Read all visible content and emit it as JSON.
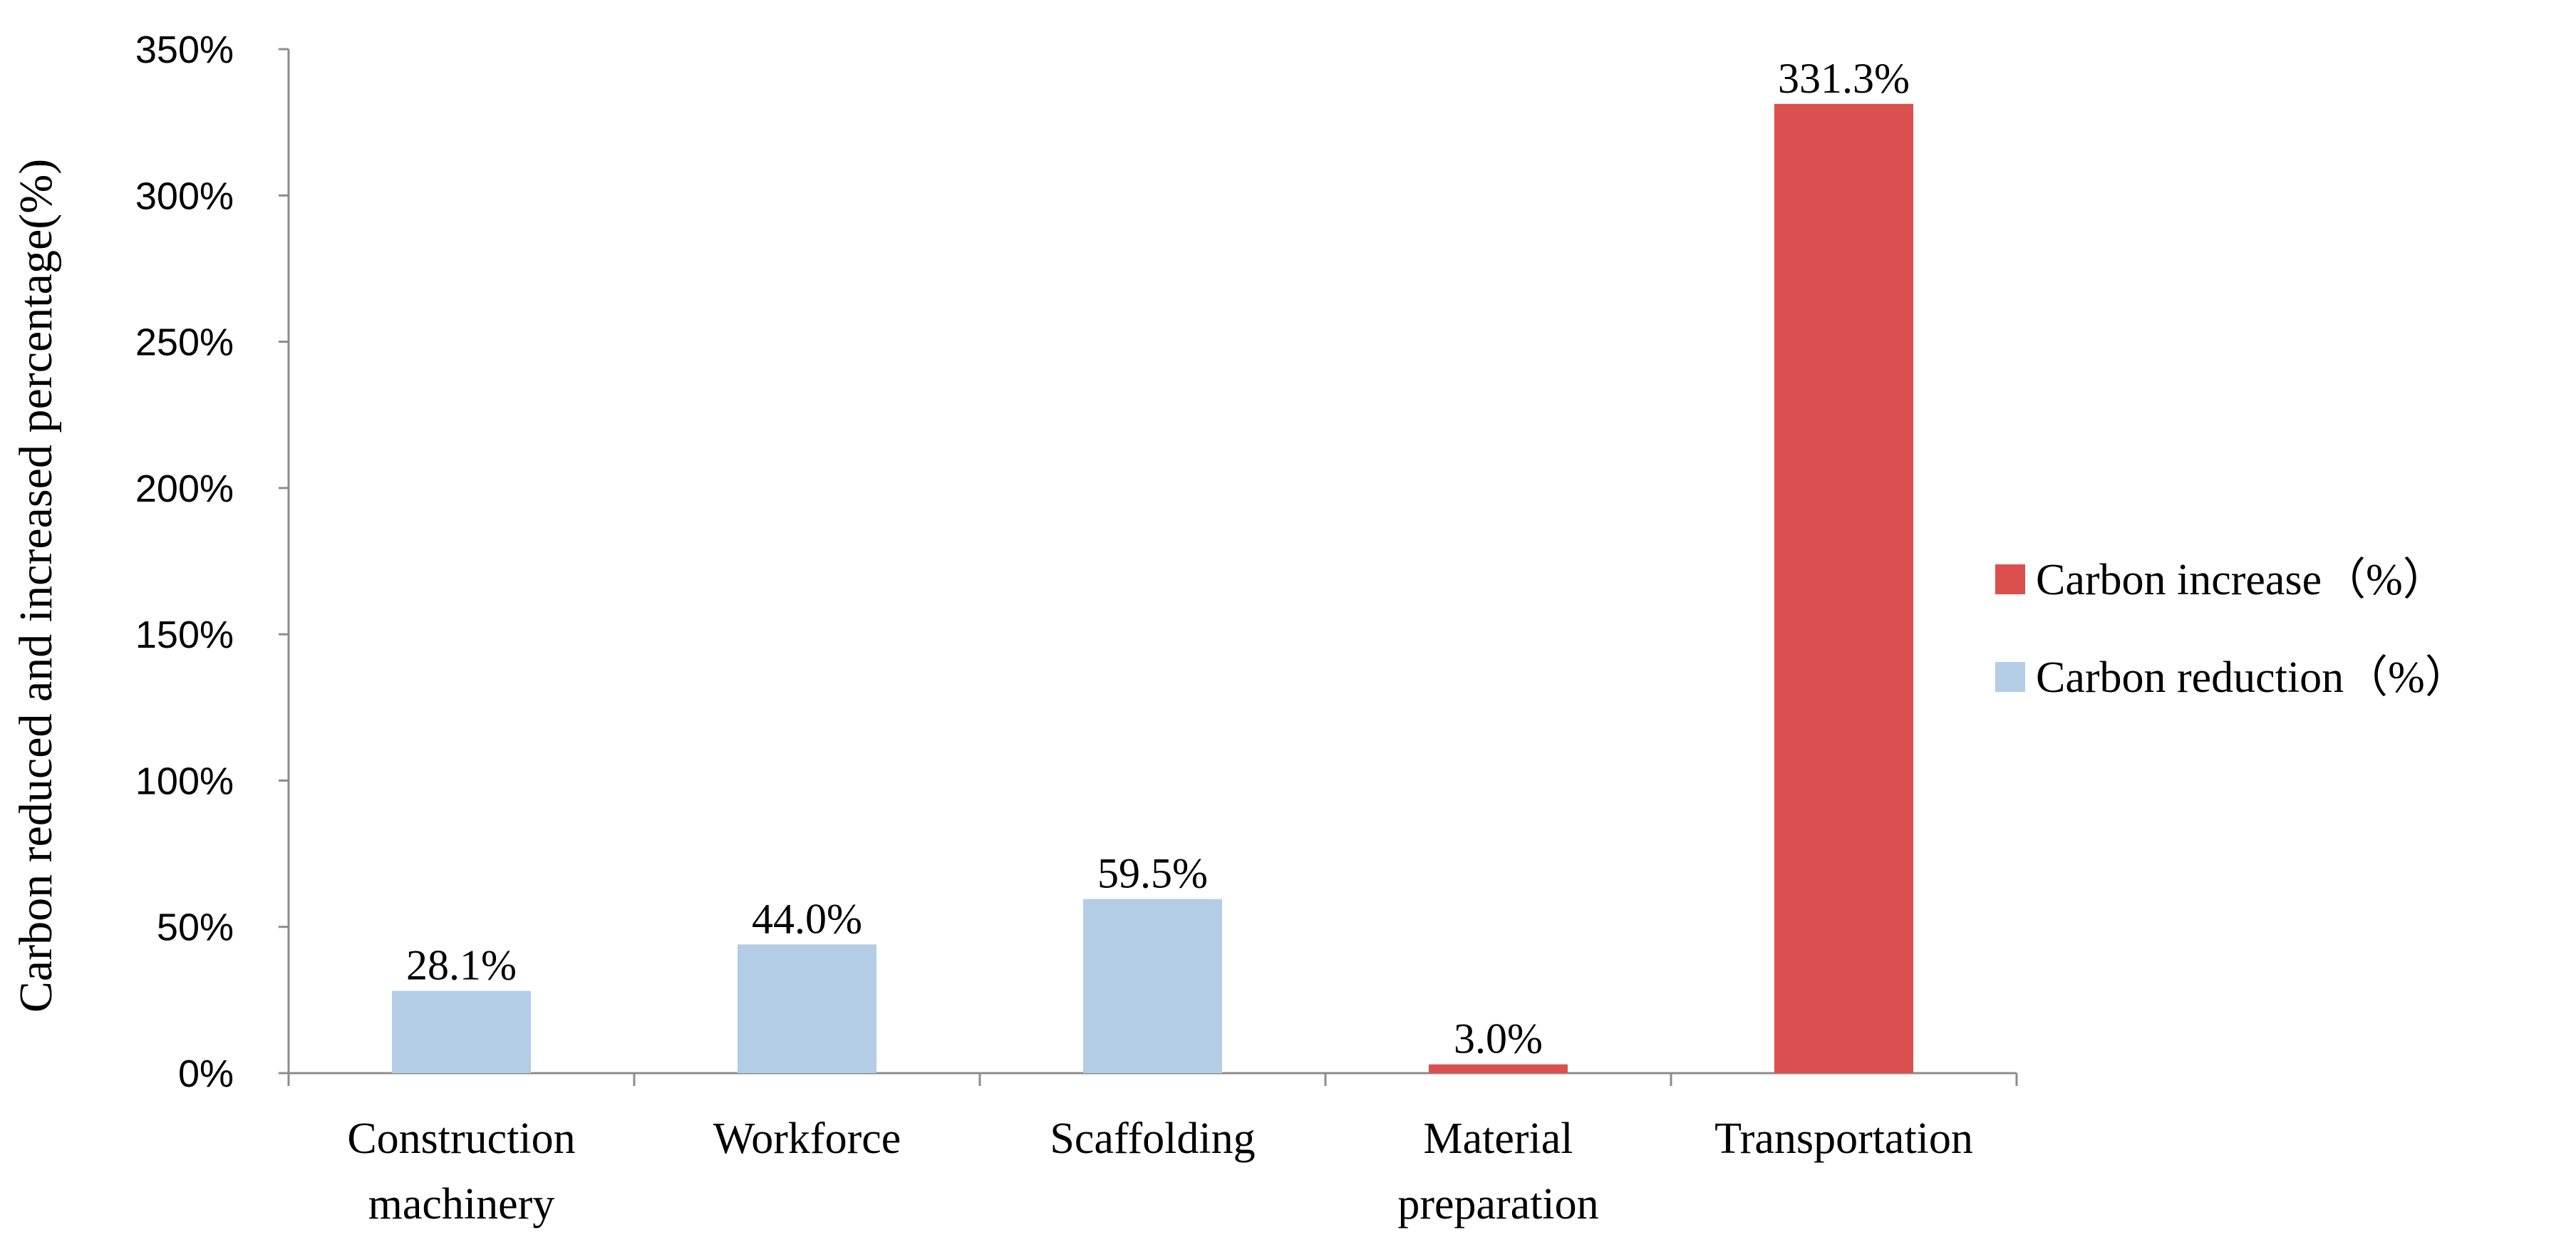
{
  "chart_data": {
    "type": "bar",
    "title": "",
    "xlabel": "",
    "ylabel": "Carbon  reduced and increased percentage(%)",
    "ylim": [
      0,
      350
    ],
    "ytick_values": [
      0,
      50,
      100,
      150,
      200,
      250,
      300,
      350
    ],
    "ytick_labels": [
      "0%",
      "50%",
      "100%",
      "150%",
      "200%",
      "250%",
      "300%",
      "350%"
    ],
    "categories": [
      [
        "Construction",
        "machinery"
      ],
      [
        "Workforce"
      ],
      [
        "Scaffolding"
      ],
      [
        "Material",
        "preparation"
      ],
      [
        "Transportation"
      ]
    ],
    "values": [
      28.1,
      44.0,
      59.5,
      3.0,
      331.3
    ],
    "value_labels": [
      "28.1%",
      "44.0%",
      "59.5%",
      "3.0%",
      "331.3%"
    ],
    "series_of_bar": [
      "reduction",
      "reduction",
      "reduction",
      "increase",
      "increase"
    ],
    "grid": false,
    "legend_position": "right",
    "series": [
      {
        "key": "increase",
        "name": "Carbon increase（%）",
        "color": "#dc4f4f"
      },
      {
        "key": "reduction",
        "name": "Carbon reduction（%）",
        "color": "#b3cde6"
      }
    ]
  }
}
